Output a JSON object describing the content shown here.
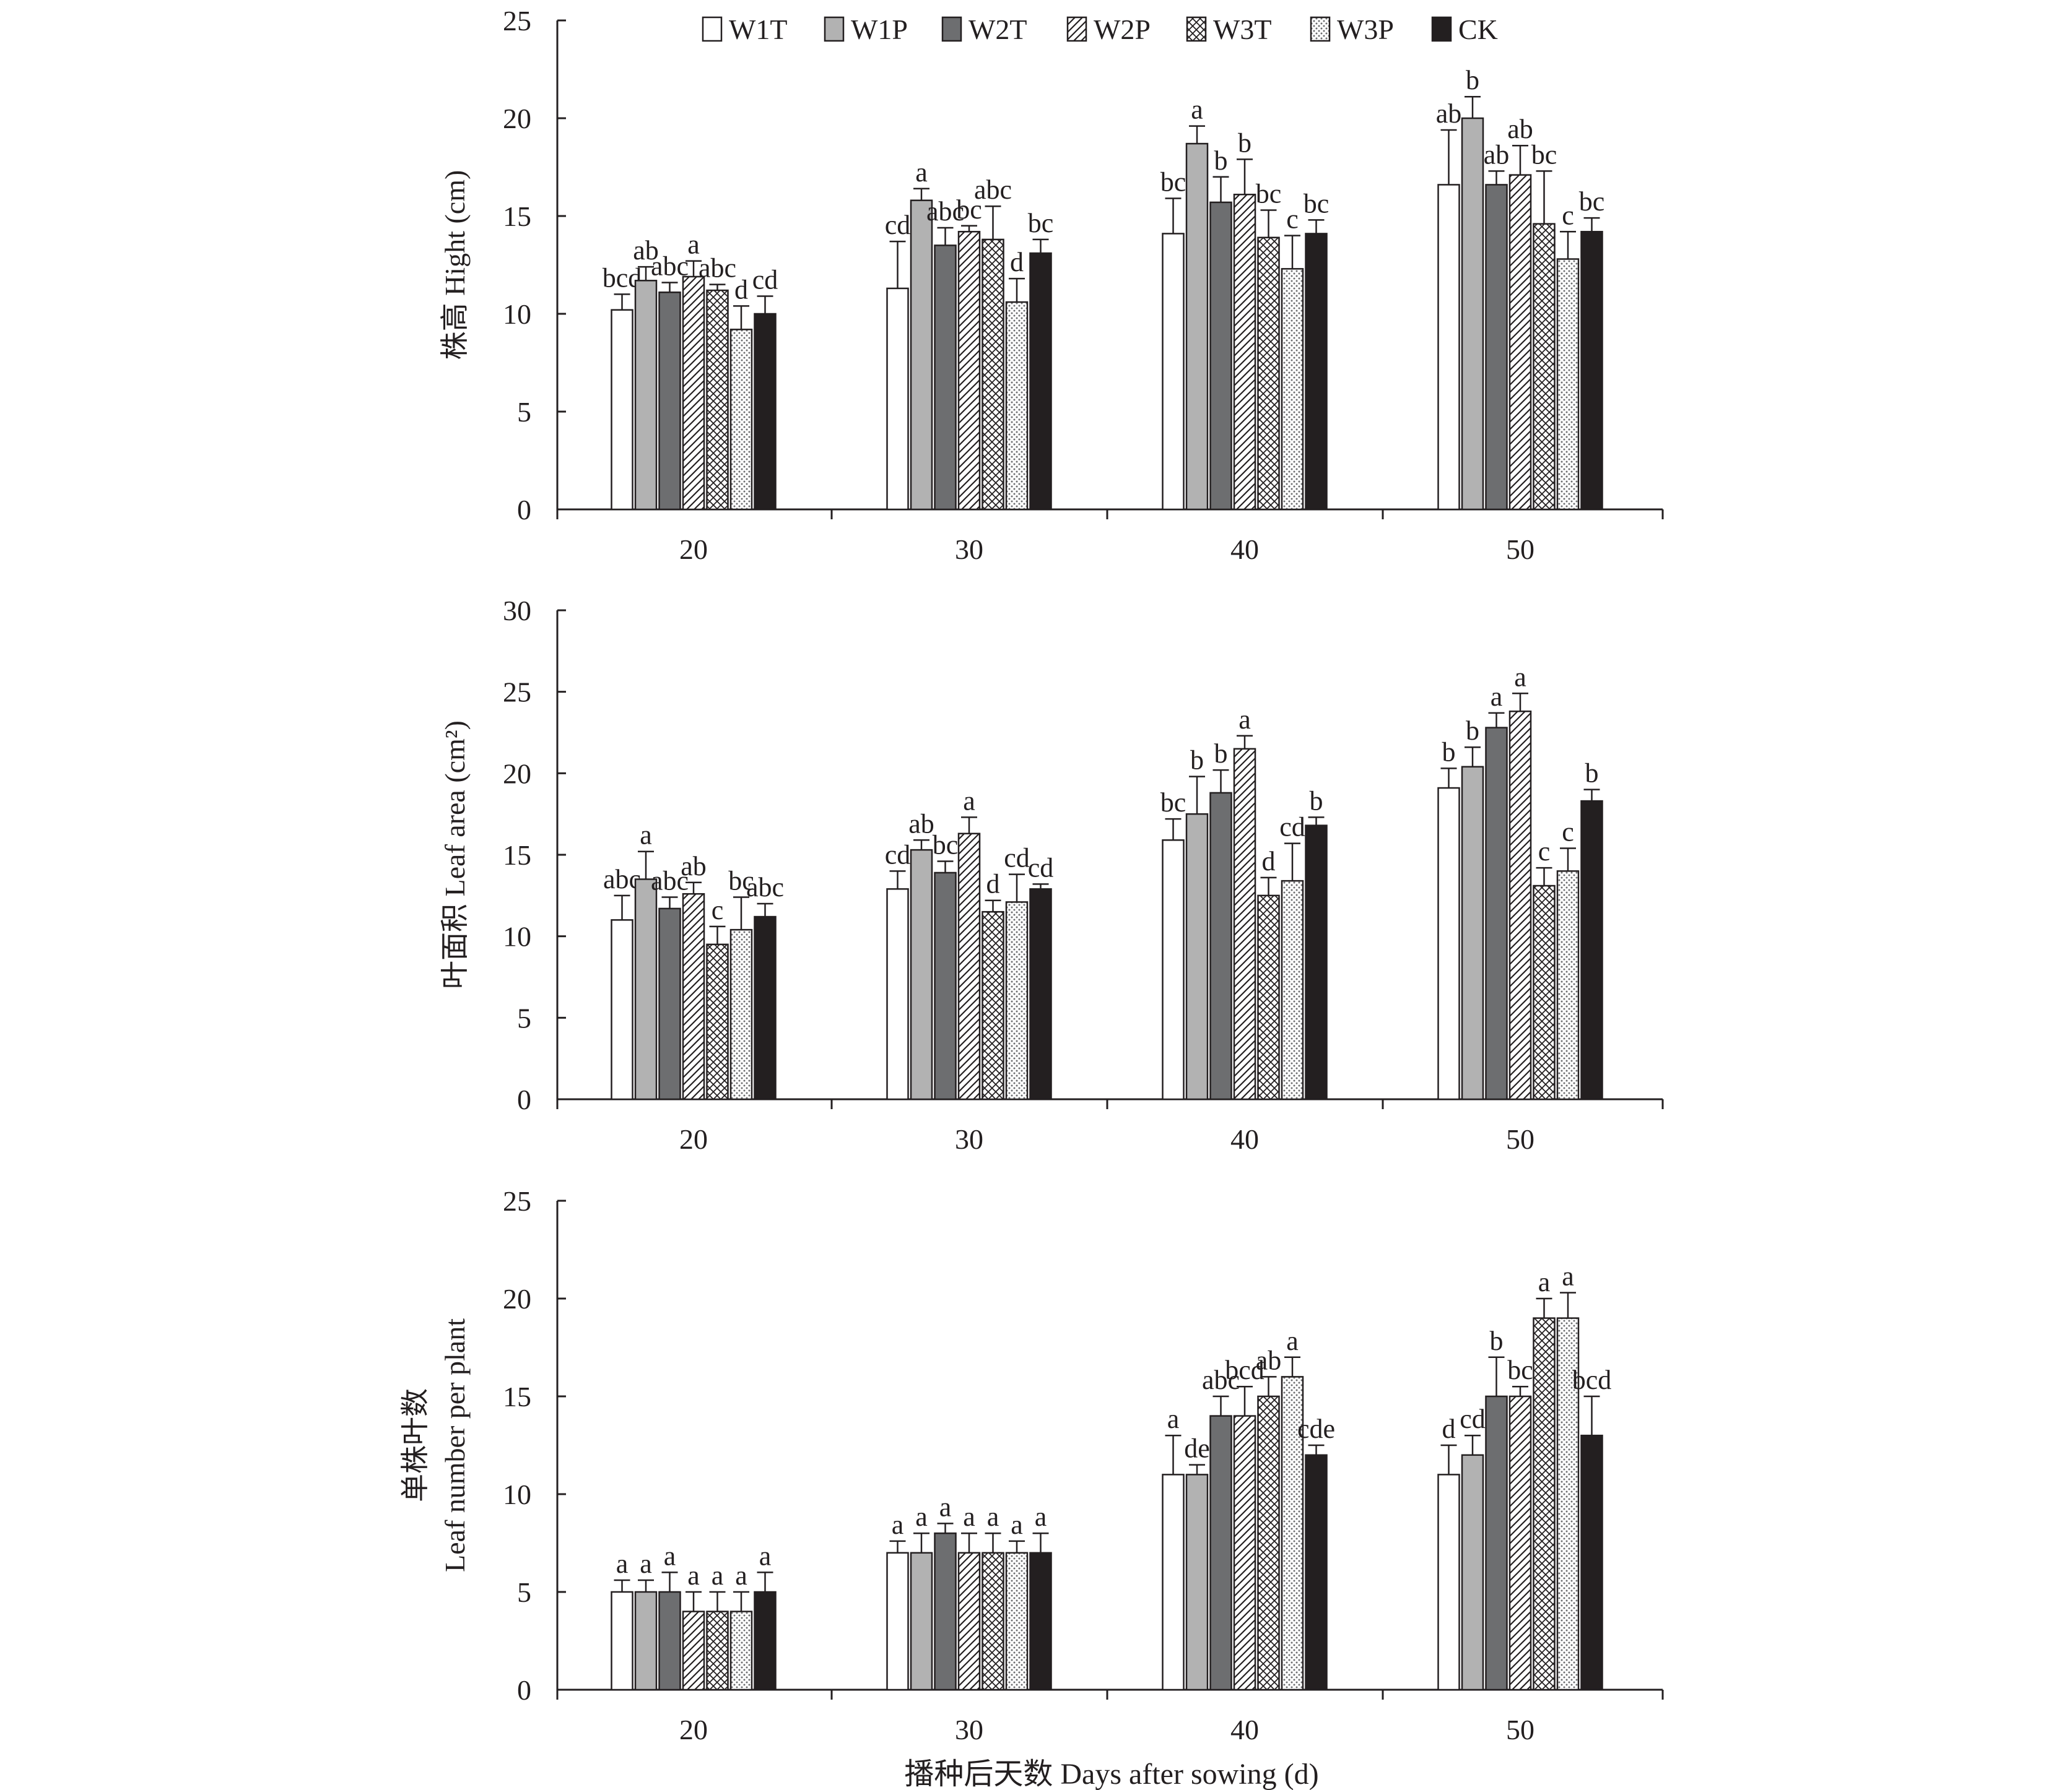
{
  "chart_data": {
    "type": "bar",
    "legend": {
      "placement": "top-center",
      "entries": [
        "W1T",
        "W1P",
        "W2T",
        "W2P",
        "W3T",
        "W3P",
        "CK"
      ]
    },
    "series_styles": [
      {
        "key": "W1T",
        "fill": "#ffffff",
        "pattern": "none"
      },
      {
        "key": "W1P",
        "fill": "#b2b2b2",
        "pattern": "none"
      },
      {
        "key": "W2T",
        "fill": "#6d6e70",
        "pattern": "none"
      },
      {
        "key": "W2P",
        "fill": "#ffffff",
        "pattern": "diagonal"
      },
      {
        "key": "W3T",
        "fill": "#ffffff",
        "pattern": "crosshatch"
      },
      {
        "key": "W3P",
        "fill": "#ffffff",
        "pattern": "dots"
      },
      {
        "key": "CK",
        "fill": "#231f20",
        "pattern": "none"
      }
    ],
    "xlabel": "播种后天数 Days after sowing (d)",
    "categories": [
      "20",
      "30",
      "40",
      "50"
    ],
    "panels": [
      {
        "ylabel": "株高 Hight (cm)",
        "ylim": [
          0,
          25
        ],
        "yticks": [
          "0",
          "5",
          "10",
          "15",
          "20",
          "25"
        ],
        "series": [
          {
            "name": "W1T",
            "values": [
              10.2,
              11.3,
              14.1,
              16.6
            ],
            "errors": [
              0.8,
              2.4,
              1.8,
              2.8
            ],
            "labels": [
              "bcd",
              "cd",
              "bc",
              "ab"
            ]
          },
          {
            "name": "W1P",
            "values": [
              11.7,
              15.8,
              18.7,
              20.0
            ],
            "errors": [
              0.7,
              0.6,
              0.9,
              1.1
            ],
            "labels": [
              "ab",
              "a",
              "a",
              "b"
            ]
          },
          {
            "name": "W2T",
            "values": [
              11.1,
              13.5,
              15.7,
              16.6
            ],
            "errors": [
              0.5,
              0.9,
              1.3,
              0.7
            ],
            "labels": [
              "abc",
              "abc",
              "b",
              "ab"
            ]
          },
          {
            "name": "W2P",
            "values": [
              11.9,
              14.2,
              16.1,
              17.1
            ],
            "errors": [
              0.8,
              0.3,
              1.8,
              1.5
            ],
            "labels": [
              "a",
              "bc",
              "b",
              "ab"
            ]
          },
          {
            "name": "W3T",
            "values": [
              11.2,
              13.8,
              13.9,
              14.6
            ],
            "errors": [
              0.3,
              1.7,
              1.4,
              2.7
            ],
            "labels": [
              "abc",
              "abc",
              "bc",
              "bc"
            ]
          },
          {
            "name": "W3P",
            "values": [
              9.2,
              10.6,
              12.3,
              12.8
            ],
            "errors": [
              1.2,
              1.2,
              1.7,
              1.4
            ],
            "labels": [
              "d",
              "d",
              "c",
              "c"
            ]
          },
          {
            "name": "CK",
            "values": [
              10.0,
              13.1,
              14.1,
              14.2
            ],
            "errors": [
              0.9,
              0.7,
              0.7,
              0.7
            ],
            "labels": [
              "cd",
              "bc",
              "bc",
              "bc"
            ]
          }
        ]
      },
      {
        "ylabel": "叶面积 Leaf area (cm²)",
        "ylim": [
          0,
          30
        ],
        "yticks": [
          "0",
          "5",
          "10",
          "15",
          "20",
          "25",
          "30"
        ],
        "series": [
          {
            "name": "W1T",
            "values": [
              11.0,
              12.9,
              15.9,
              19.1
            ],
            "errors": [
              1.5,
              1.1,
              1.3,
              1.2
            ],
            "labels": [
              "abc",
              "cd",
              "bc",
              "b"
            ]
          },
          {
            "name": "W1P",
            "values": [
              13.5,
              15.3,
              17.5,
              20.4
            ],
            "errors": [
              1.7,
              0.6,
              2.3,
              1.2
            ],
            "labels": [
              "a",
              "ab",
              "b",
              "b"
            ]
          },
          {
            "name": "W2T",
            "values": [
              11.7,
              13.9,
              18.8,
              22.8
            ],
            "errors": [
              0.7,
              0.7,
              1.4,
              0.9
            ],
            "labels": [
              "abc",
              "bc",
              "b",
              "a"
            ]
          },
          {
            "name": "W2P",
            "values": [
              12.6,
              16.3,
              21.5,
              23.8
            ],
            "errors": [
              0.7,
              1.0,
              0.8,
              1.1
            ],
            "labels": [
              "ab",
              "a",
              "a",
              "a"
            ]
          },
          {
            "name": "W3T",
            "values": [
              9.5,
              11.5,
              12.5,
              13.1
            ],
            "errors": [
              1.1,
              0.7,
              1.1,
              1.1
            ],
            "labels": [
              "c",
              "d",
              "d",
              "c"
            ]
          },
          {
            "name": "W3P",
            "values": [
              10.4,
              12.1,
              13.4,
              14.0
            ],
            "errors": [
              2.0,
              1.7,
              2.3,
              1.4
            ],
            "labels": [
              "bc",
              "cd",
              "cd",
              "c"
            ]
          },
          {
            "name": "CK",
            "values": [
              11.2,
              12.9,
              16.8,
              18.3
            ],
            "errors": [
              0.8,
              0.3,
              0.5,
              0.7
            ],
            "labels": [
              "abc",
              "cd",
              "b",
              "b"
            ]
          }
        ]
      },
      {
        "ylabel": "单株叶数 Leaf number per plant",
        "ylim": [
          0,
          25
        ],
        "yticks": [
          "0",
          "5",
          "10",
          "15",
          "20",
          "25"
        ],
        "series": [
          {
            "name": "W1T",
            "values": [
              5.0,
              7.0,
              11.0,
              11.0
            ],
            "errors": [
              0.6,
              0.6,
              2.0,
              1.5
            ],
            "labels": [
              "a",
              "a",
              "a",
              "d"
            ]
          },
          {
            "name": "W1P",
            "values": [
              5.0,
              7.0,
              11.0,
              12.0
            ],
            "errors": [
              0.6,
              1.0,
              0.5,
              1.0
            ],
            "labels": [
              "a",
              "a",
              "de",
              "cd"
            ]
          },
          {
            "name": "W2T",
            "values": [
              5.0,
              8.0,
              14.0,
              15.0
            ],
            "errors": [
              1.0,
              0.5,
              1.0,
              2.0
            ],
            "labels": [
              "a",
              "a",
              "abc",
              "b"
            ]
          },
          {
            "name": "W2P",
            "values": [
              4.0,
              7.0,
              14.0,
              15.0
            ],
            "errors": [
              1.0,
              1.0,
              1.5,
              0.5
            ],
            "labels": [
              "a",
              "a",
              "bcd",
              "bc"
            ]
          },
          {
            "name": "W3T",
            "values": [
              4.0,
              7.0,
              15.0,
              19.0
            ],
            "errors": [
              1.0,
              1.0,
              1.0,
              1.0
            ],
            "labels": [
              "a",
              "a",
              "ab",
              "a"
            ]
          },
          {
            "name": "W3P",
            "values": [
              4.0,
              7.0,
              16.0,
              19.0
            ],
            "errors": [
              1.0,
              0.6,
              1.0,
              1.3
            ],
            "labels": [
              "a",
              "a",
              "a",
              "a"
            ]
          },
          {
            "name": "CK",
            "values": [
              5.0,
              7.0,
              12.0,
              13.0
            ],
            "errors": [
              1.0,
              1.0,
              0.5,
              2.0
            ],
            "labels": [
              "a",
              "a",
              "cde",
              "bcd"
            ]
          }
        ]
      }
    ]
  }
}
